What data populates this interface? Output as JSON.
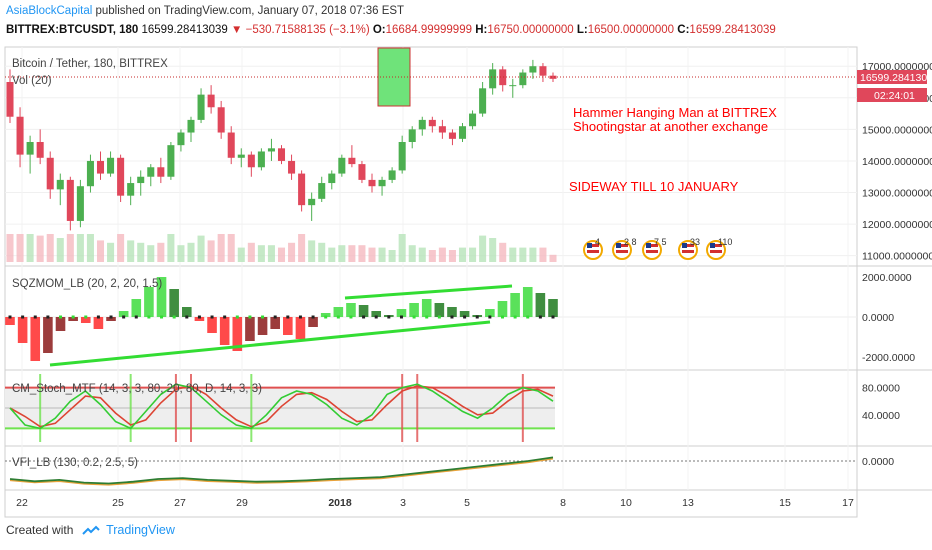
{
  "header": {
    "author": "AsiaBlockCapital",
    "published": "published on TradingView.com, January 07, 2018 07:36 EST",
    "symbol": "BITTREX:BTCUSDT, 180",
    "last": "16599.28413039",
    "change": "▼ −530.71588135 (−3.1%)",
    "o_label": "O:",
    "o": "16684.99999999",
    "h_label": "H:",
    "h": "16750.00000000",
    "l_label": "L:",
    "l": "16500.00000000",
    "c_label": "C:",
    "c": "16599.28413039"
  },
  "main_pane": {
    "title": "Bitcoin / Tether, 180, BITTREX",
    "vol_label": "Vol (20)",
    "price_tag": "16599.28413039",
    "timer_tag": "02:24:01",
    "annotation_1": "Hammer Hanging Man at BITTREX",
    "annotation_2": "Shootingstar at another exchange",
    "annotation_3": "SIDEWAY TILL 10 JANUARY",
    "event_badges": [
      "4",
      "2",
      "8",
      "7 5",
      "33",
      "110"
    ]
  },
  "sqz_pane": {
    "label": "SQZMOM_LB (20, 2, 20, 1.5)"
  },
  "stoch_pane": {
    "label": "CM_Stoch_MTF (14, 3, 3, 80, 20, 80, D, 14, 3, 3)"
  },
  "vfi_pane": {
    "label": "VFI_LB (130, 0.2, 2.5, 5)"
  },
  "footer": {
    "created_with": "Created with",
    "brand": "TradingView"
  },
  "colors": {
    "up": "#4caf50",
    "down": "#e0475b",
    "annotation": "#ff0000",
    "trendline": "#33dd33",
    "price_line": "#c62828",
    "accent": "#2196f3"
  },
  "chart_data": {
    "type": "candlestick",
    "title": "Bitcoin / Tether, 180, BITTREX",
    "price_axis_ticks": [
      "17000.00000000",
      "16000.00000000",
      "15000.00000000",
      "14000.00000000",
      "13000.00000000",
      "12000.00000000",
      "11000.00000000"
    ],
    "ylim": [
      10800,
      17450
    ],
    "last_price": 16599.28,
    "time_axis_ticks": [
      "22",
      "25",
      "27",
      "29",
      "2018",
      "3",
      "5",
      "8",
      "10",
      "13",
      "15",
      "17"
    ],
    "candles_ohlc_approx": [
      [
        16500,
        16900,
        15200,
        15400
      ],
      [
        15400,
        15700,
        13800,
        14200
      ],
      [
        14200,
        14800,
        13600,
        14600
      ],
      [
        14600,
        15000,
        13900,
        14100
      ],
      [
        14100,
        14300,
        12800,
        13100
      ],
      [
        13100,
        13600,
        12600,
        13400
      ],
      [
        13400,
        13500,
        11800,
        12100
      ],
      [
        12100,
        13400,
        11900,
        13200
      ],
      [
        13200,
        14200,
        13000,
        14000
      ],
      [
        14000,
        14300,
        13400,
        13600
      ],
      [
        13600,
        14300,
        13500,
        14100
      ],
      [
        14100,
        14200,
        12700,
        12900
      ],
      [
        12900,
        13500,
        12600,
        13300
      ],
      [
        13300,
        13700,
        12900,
        13500
      ],
      [
        13500,
        13900,
        13200,
        13800
      ],
      [
        13800,
        14100,
        13300,
        13500
      ],
      [
        13500,
        14600,
        13400,
        14500
      ],
      [
        14500,
        15000,
        14300,
        14900
      ],
      [
        14900,
        15400,
        14600,
        15300
      ],
      [
        15300,
        16300,
        15200,
        16100
      ],
      [
        16100,
        16400,
        15500,
        15700
      ],
      [
        15700,
        15900,
        14700,
        14900
      ],
      [
        14900,
        15100,
        13900,
        14100
      ],
      [
        14100,
        14400,
        13800,
        14200
      ],
      [
        14200,
        14300,
        13500,
        13800
      ],
      [
        13800,
        14400,
        13700,
        14300
      ],
      [
        14300,
        14700,
        14000,
        14400
      ],
      [
        14400,
        14500,
        13900,
        14000
      ],
      [
        14000,
        14200,
        13400,
        13600
      ],
      [
        13600,
        13700,
        12400,
        12600
      ],
      [
        12600,
        13000,
        12100,
        12800
      ],
      [
        12800,
        13500,
        12700,
        13300
      ],
      [
        13300,
        13700,
        13100,
        13600
      ],
      [
        13600,
        14200,
        13500,
        14100
      ],
      [
        14100,
        14500,
        13800,
        13900
      ],
      [
        13900,
        14000,
        13300,
        13400
      ],
      [
        13400,
        13600,
        13000,
        13200
      ],
      [
        13200,
        13500,
        12900,
        13400
      ],
      [
        13400,
        13800,
        13300,
        13700
      ],
      [
        13700,
        14800,
        13600,
        14600
      ],
      [
        14600,
        15100,
        14400,
        15000
      ],
      [
        15000,
        15400,
        14800,
        15300
      ],
      [
        15300,
        15400,
        14900,
        15100
      ],
      [
        15100,
        15300,
        14700,
        14900
      ],
      [
        14900,
        15000,
        14500,
        14700
      ],
      [
        14700,
        15200,
        14600,
        15100
      ],
      [
        15100,
        15600,
        15000,
        15500
      ],
      [
        15500,
        16500,
        15400,
        16300
      ],
      [
        16300,
        17100,
        16100,
        16900
      ],
      [
        16900,
        17000,
        16200,
        16400
      ],
      [
        16400,
        16600,
        16000,
        16400
      ],
      [
        16400,
        16900,
        16300,
        16800
      ],
      [
        16800,
        17200,
        16600,
        17000
      ],
      [
        17000,
        17100,
        16500,
        16700
      ],
      [
        16700,
        16800,
        16500,
        16600
      ]
    ],
    "sqzmom_ticks": [
      "2000.0000",
      "0.0000",
      "-2000.0000"
    ],
    "sqzmom_approx": [
      -400,
      -1300,
      -2200,
      -1800,
      -700,
      -200,
      -300,
      -600,
      -200,
      300,
      900,
      1500,
      2000,
      1400,
      500,
      -200,
      -800,
      -1400,
      -1700,
      -1200,
      -900,
      -600,
      -900,
      -1100,
      -500,
      200,
      500,
      700,
      600,
      300,
      100,
      400,
      700,
      900,
      700,
      500,
      300,
      100,
      400,
      800,
      1200,
      1500,
      1200,
      900
    ],
    "stoch_ticks": [
      "80.0000",
      "40.0000"
    ],
    "stoch_k_approx": [
      50,
      25,
      20,
      35,
      60,
      75,
      55,
      30,
      20,
      45,
      70,
      85,
      80,
      60,
      40,
      25,
      20,
      40,
      65,
      75,
      70,
      55,
      35,
      25,
      40,
      70,
      80,
      85,
      75,
      60,
      45,
      35,
      50,
      70,
      80,
      75,
      60
    ],
    "vfi_ticks": [
      "0.0000"
    ],
    "vfi_approx": [
      -40,
      -45,
      -42,
      -48,
      -50,
      -46,
      -40,
      -38,
      -42,
      -44,
      -46,
      -45,
      -43,
      -40,
      -38,
      -36,
      -30,
      -24,
      -18,
      -12,
      -6,
      0,
      8
    ]
  }
}
